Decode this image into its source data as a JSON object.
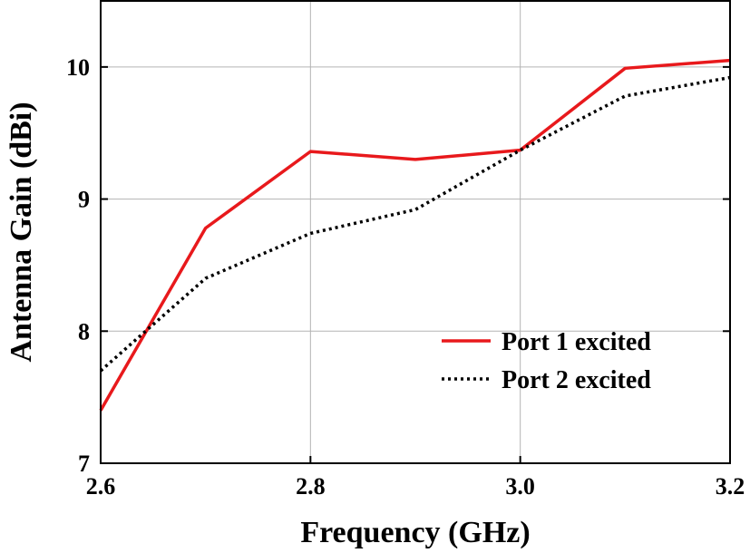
{
  "chart_data": {
    "type": "line",
    "title": "",
    "xlabel": "Frequency (GHz)",
    "ylabel": "Antenna Gain (dBi)",
    "xlim": [
      2.6,
      3.2
    ],
    "ylim": [
      7,
      10.5
    ],
    "x_ticks": [
      "2.6",
      "2.8",
      "3.0",
      "3.2"
    ],
    "y_ticks": [
      "7",
      "8",
      "9",
      "10"
    ],
    "grid": true,
    "legend_position": "lower-right",
    "x": [
      2.6,
      2.7,
      2.8,
      2.9,
      3.0,
      3.1,
      3.2
    ],
    "series": [
      {
        "name": "Port 1 excited",
        "values": [
          7.4,
          8.78,
          9.36,
          9.3,
          9.37,
          9.99,
          10.05
        ],
        "color": "#e8191c",
        "style": "solid"
      },
      {
        "name": "Port 2 excited",
        "values": [
          7.7,
          8.4,
          8.74,
          8.92,
          9.37,
          9.78,
          9.92
        ],
        "color": "#000000",
        "style": "dotted"
      }
    ]
  }
}
